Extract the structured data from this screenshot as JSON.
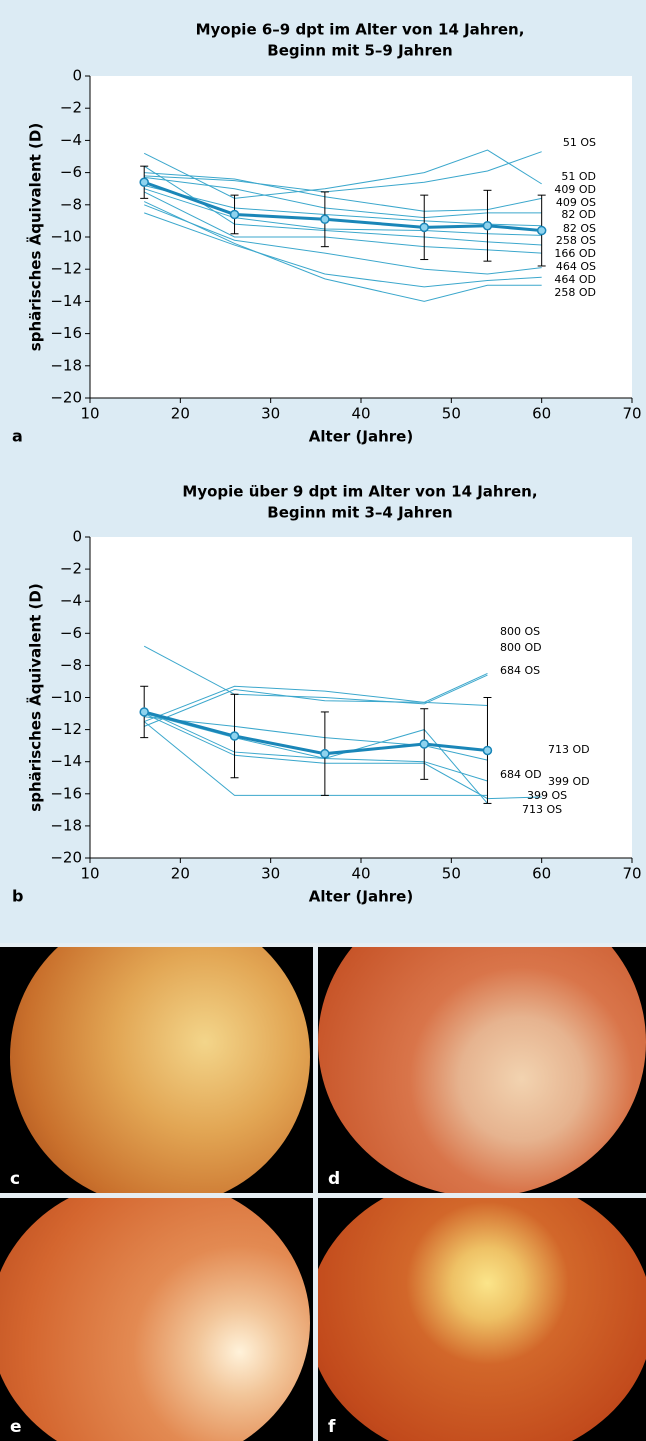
{
  "chart_data": [
    {
      "type": "line",
      "panel_label": "a",
      "title": [
        "Myopie 6–9 dpt im Alter von 14 Jahren,",
        "Beginn mit 5–9 Jahren"
      ],
      "x_label": "Alter (Jahre)",
      "y_label": "sphärisches Äquivalent (D)",
      "x": [
        16,
        26,
        36,
        47,
        54,
        60
      ],
      "xlim": [
        10,
        70
      ],
      "xticks": [
        10,
        20,
        30,
        40,
        50,
        60,
        70
      ],
      "ylim": [
        -20,
        0
      ],
      "yticks": [
        0,
        {
          "value": -2,
          "label": "−2"
        },
        {
          "value": -4,
          "label": "−4"
        },
        {
          "value": -6,
          "label": "−6"
        },
        {
          "value": -8,
          "label": "−8"
        },
        {
          "value": -10,
          "label": "−10"
        },
        {
          "value": -12,
          "label": "−12"
        },
        {
          "value": -14,
          "label": "−14"
        },
        {
          "value": -16,
          "label": "−16"
        },
        {
          "value": -18,
          "label": "−18"
        },
        {
          "value": -20,
          "label": "−20"
        }
      ],
      "series": [
        {
          "name": "51 OS",
          "color": "#3ba7cc",
          "values": [
            -6.2,
            -6.5,
            -7.2,
            -6.6,
            -5.9,
            -4.7
          ]
        },
        {
          "name": "51 OD",
          "color": "#3ba7cc",
          "values": [
            -4.8,
            -7.6,
            -7.0,
            -6.0,
            -4.6,
            -6.7
          ]
        },
        {
          "name": "409 OD",
          "color": "#3ba7cc",
          "values": [
            -6.0,
            -6.4,
            -7.5,
            -8.4,
            -8.3,
            -7.6
          ]
        },
        {
          "name": "409 OS",
          "color": "#3ba7cc",
          "values": [
            -6.3,
            -7.0,
            -8.2,
            -8.8,
            -8.5,
            -8.5
          ]
        },
        {
          "name": "82 OD",
          "color": "#3ba7cc",
          "values": [
            -6.8,
            -8.2,
            -8.6,
            -9.0,
            -9.2,
            -9.3
          ]
        },
        {
          "name": "82 OS",
          "color": "#3ba7cc",
          "values": [
            -7.0,
            -8.8,
            -9.5,
            -9.6,
            -9.8,
            -9.9
          ]
        },
        {
          "name": "258 OS",
          "color": "#3ba7cc",
          "values": [
            -5.6,
            -9.2,
            -9.6,
            -10.0,
            -10.3,
            -10.5
          ]
        },
        {
          "name": "166 OD",
          "color": "#3ba7cc",
          "values": [
            -7.2,
            -10.0,
            -10.0,
            -10.6,
            -10.8,
            -11.0
          ]
        },
        {
          "name": "464 OS",
          "color": "#3ba7cc",
          "values": [
            -8.0,
            -10.2,
            -11.0,
            -12.0,
            -12.3,
            -11.9
          ]
        },
        {
          "name": "464 OD",
          "color": "#3ba7cc",
          "values": [
            -8.5,
            -10.5,
            -12.3,
            -13.1,
            -12.7,
            -12.5
          ]
        },
        {
          "name": "258 OD",
          "color": "#3ba7cc",
          "values": [
            -7.8,
            -10.4,
            -12.6,
            -14.0,
            -13.0,
            -13.0
          ]
        },
        {
          "color": "#1a86b8",
          "values": [
            -6.6,
            -8.6,
            -8.9,
            -9.4,
            -9.3,
            -9.6
          ],
          "errors": [
            1.0,
            1.2,
            1.7,
            2.0,
            2.2,
            2.2
          ]
        }
      ]
    },
    {
      "type": "line",
      "panel_label": "b",
      "title": [
        "Myopie über 9 dpt im Alter von 14 Jahren,",
        "Beginn mit 3–4 Jahren"
      ],
      "x_label": "Alter (Jahre)",
      "y_label": "sphärisches Äquivalent (D)",
      "x": [
        16,
        26,
        36,
        47,
        54,
        60
      ],
      "xlim": [
        10,
        70
      ],
      "xticks": [
        10,
        20,
        30,
        40,
        50,
        60,
        70
      ],
      "ylim": [
        -20,
        0
      ],
      "yticks": [
        0,
        {
          "value": -2,
          "label": "−2"
        },
        {
          "value": -4,
          "label": "−4"
        },
        {
          "value": -6,
          "label": "−6"
        },
        {
          "value": -8,
          "label": "−8"
        },
        {
          "value": -10,
          "label": "−10"
        },
        {
          "value": -12,
          "label": "−12"
        },
        {
          "value": -14,
          "label": "−14"
        },
        {
          "value": -16,
          "label": "−16"
        },
        {
          "value": -18,
          "label": "−18"
        },
        {
          "value": -20,
          "label": "−20"
        }
      ],
      "series": [
        {
          "name": "800 OS",
          "color": "#3ba7cc",
          "values": [
            -11.5,
            -9.3,
            -9.6,
            -10.3,
            -8.5,
            null
          ]
        },
        {
          "name": "800 OD",
          "color": "#3ba7cc",
          "values": [
            -6.8,
            -9.8,
            -10.0,
            -10.4,
            -8.6,
            null
          ]
        },
        {
          "name": "684 OS",
          "color": "#3ba7cc",
          "values": [
            -11.8,
            -9.5,
            -10.2,
            -10.3,
            -10.5,
            null
          ]
        },
        {
          "name": "713 OD",
          "color": "#3ba7cc",
          "values": [
            -11.2,
            -11.8,
            -12.5,
            -13.0,
            -13.9,
            null
          ]
        },
        {
          "name": "684 OD",
          "color": "#3ba7cc",
          "values": [
            -10.8,
            -13.4,
            -13.8,
            -14.0,
            -15.2,
            null
          ]
        },
        {
          "name": "399 OD",
          "color": "#3ba7cc",
          "values": [
            -11.0,
            -13.6,
            -14.1,
            -14.1,
            -16.3,
            -16.2
          ]
        },
        {
          "name": "399 OS",
          "color": "#3ba7cc",
          "values": [
            -11.5,
            -16.1,
            -16.1,
            -16.1,
            -16.1,
            null
          ]
        },
        {
          "name": "713 OS",
          "color": "#3ba7cc",
          "values": [
            -11.0,
            -12.5,
            -13.8,
            -12.0,
            -16.6,
            null
          ]
        },
        {
          "color": "#1a86b8",
          "values": [
            -10.9,
            -12.4,
            -13.5,
            -12.9,
            -13.3,
            null
          ],
          "errors": [
            1.6,
            2.6,
            2.6,
            2.2,
            3.3,
            null
          ]
        }
      ]
    }
  ],
  "photos": [
    {
      "label": "c"
    },
    {
      "label": "d"
    },
    {
      "label": "e"
    },
    {
      "label": "f"
    }
  ]
}
